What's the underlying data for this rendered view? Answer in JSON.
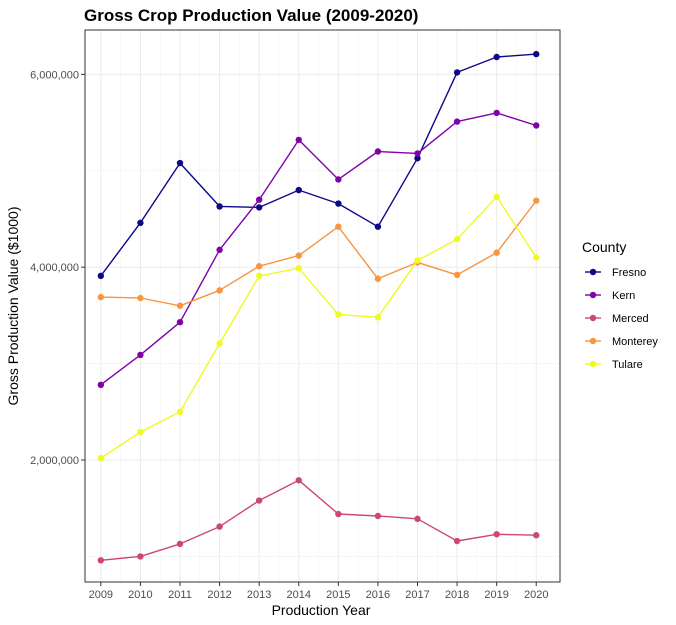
{
  "chart_data": {
    "type": "line",
    "title": "Gross Crop Production Value (2009-2020)",
    "xlabel": "Production Year",
    "ylabel": "Gross Production Value ($1000)",
    "x": [
      2009,
      2010,
      2011,
      2012,
      2013,
      2014,
      2015,
      2016,
      2017,
      2018,
      2019,
      2020
    ],
    "x_tick_labels": [
      "2009",
      "2010",
      "2011",
      "2012",
      "2013",
      "2014",
      "2015",
      "2016",
      "2017",
      "2018",
      "2019",
      "2020"
    ],
    "y_ticks": [
      2000000,
      4000000,
      6000000
    ],
    "y_tick_labels": [
      "2,000,000",
      "4,000,000",
      "6,000,000"
    ],
    "xlim": [
      2008.6,
      2020.6
    ],
    "ylim": [
      735000,
      6460000
    ],
    "grid": true,
    "legend": {
      "title": "County",
      "placement": "right"
    },
    "series": [
      {
        "name": "Fresno",
        "color": "#0d0887",
        "values": [
          3910000,
          4460000,
          5080000,
          4630000,
          4620000,
          4800000,
          4660000,
          4420000,
          5130000,
          6020000,
          6180000,
          6210000
        ]
      },
      {
        "name": "Kern",
        "color": "#7e03a8",
        "values": [
          2780000,
          3090000,
          3430000,
          4180000,
          4700000,
          5320000,
          4910000,
          5200000,
          5180000,
          5510000,
          5600000,
          5470000
        ]
      },
      {
        "name": "Merced",
        "color": "#cc4778",
        "values": [
          960000,
          1000000,
          1130000,
          1310000,
          1580000,
          1790000,
          1440000,
          1420000,
          1390000,
          1160000,
          1230000,
          1220000
        ]
      },
      {
        "name": "Monterey",
        "color": "#f89540",
        "values": [
          3690000,
          3680000,
          3600000,
          3760000,
          4010000,
          4120000,
          4420000,
          3880000,
          4050000,
          3920000,
          4150000,
          4690000
        ]
      },
      {
        "name": "Tulare",
        "color": "#f0f921",
        "values": [
          2020000,
          2290000,
          2500000,
          3210000,
          3910000,
          3990000,
          3510000,
          3480000,
          4070000,
          4290000,
          4730000,
          4100000
        ]
      }
    ]
  }
}
